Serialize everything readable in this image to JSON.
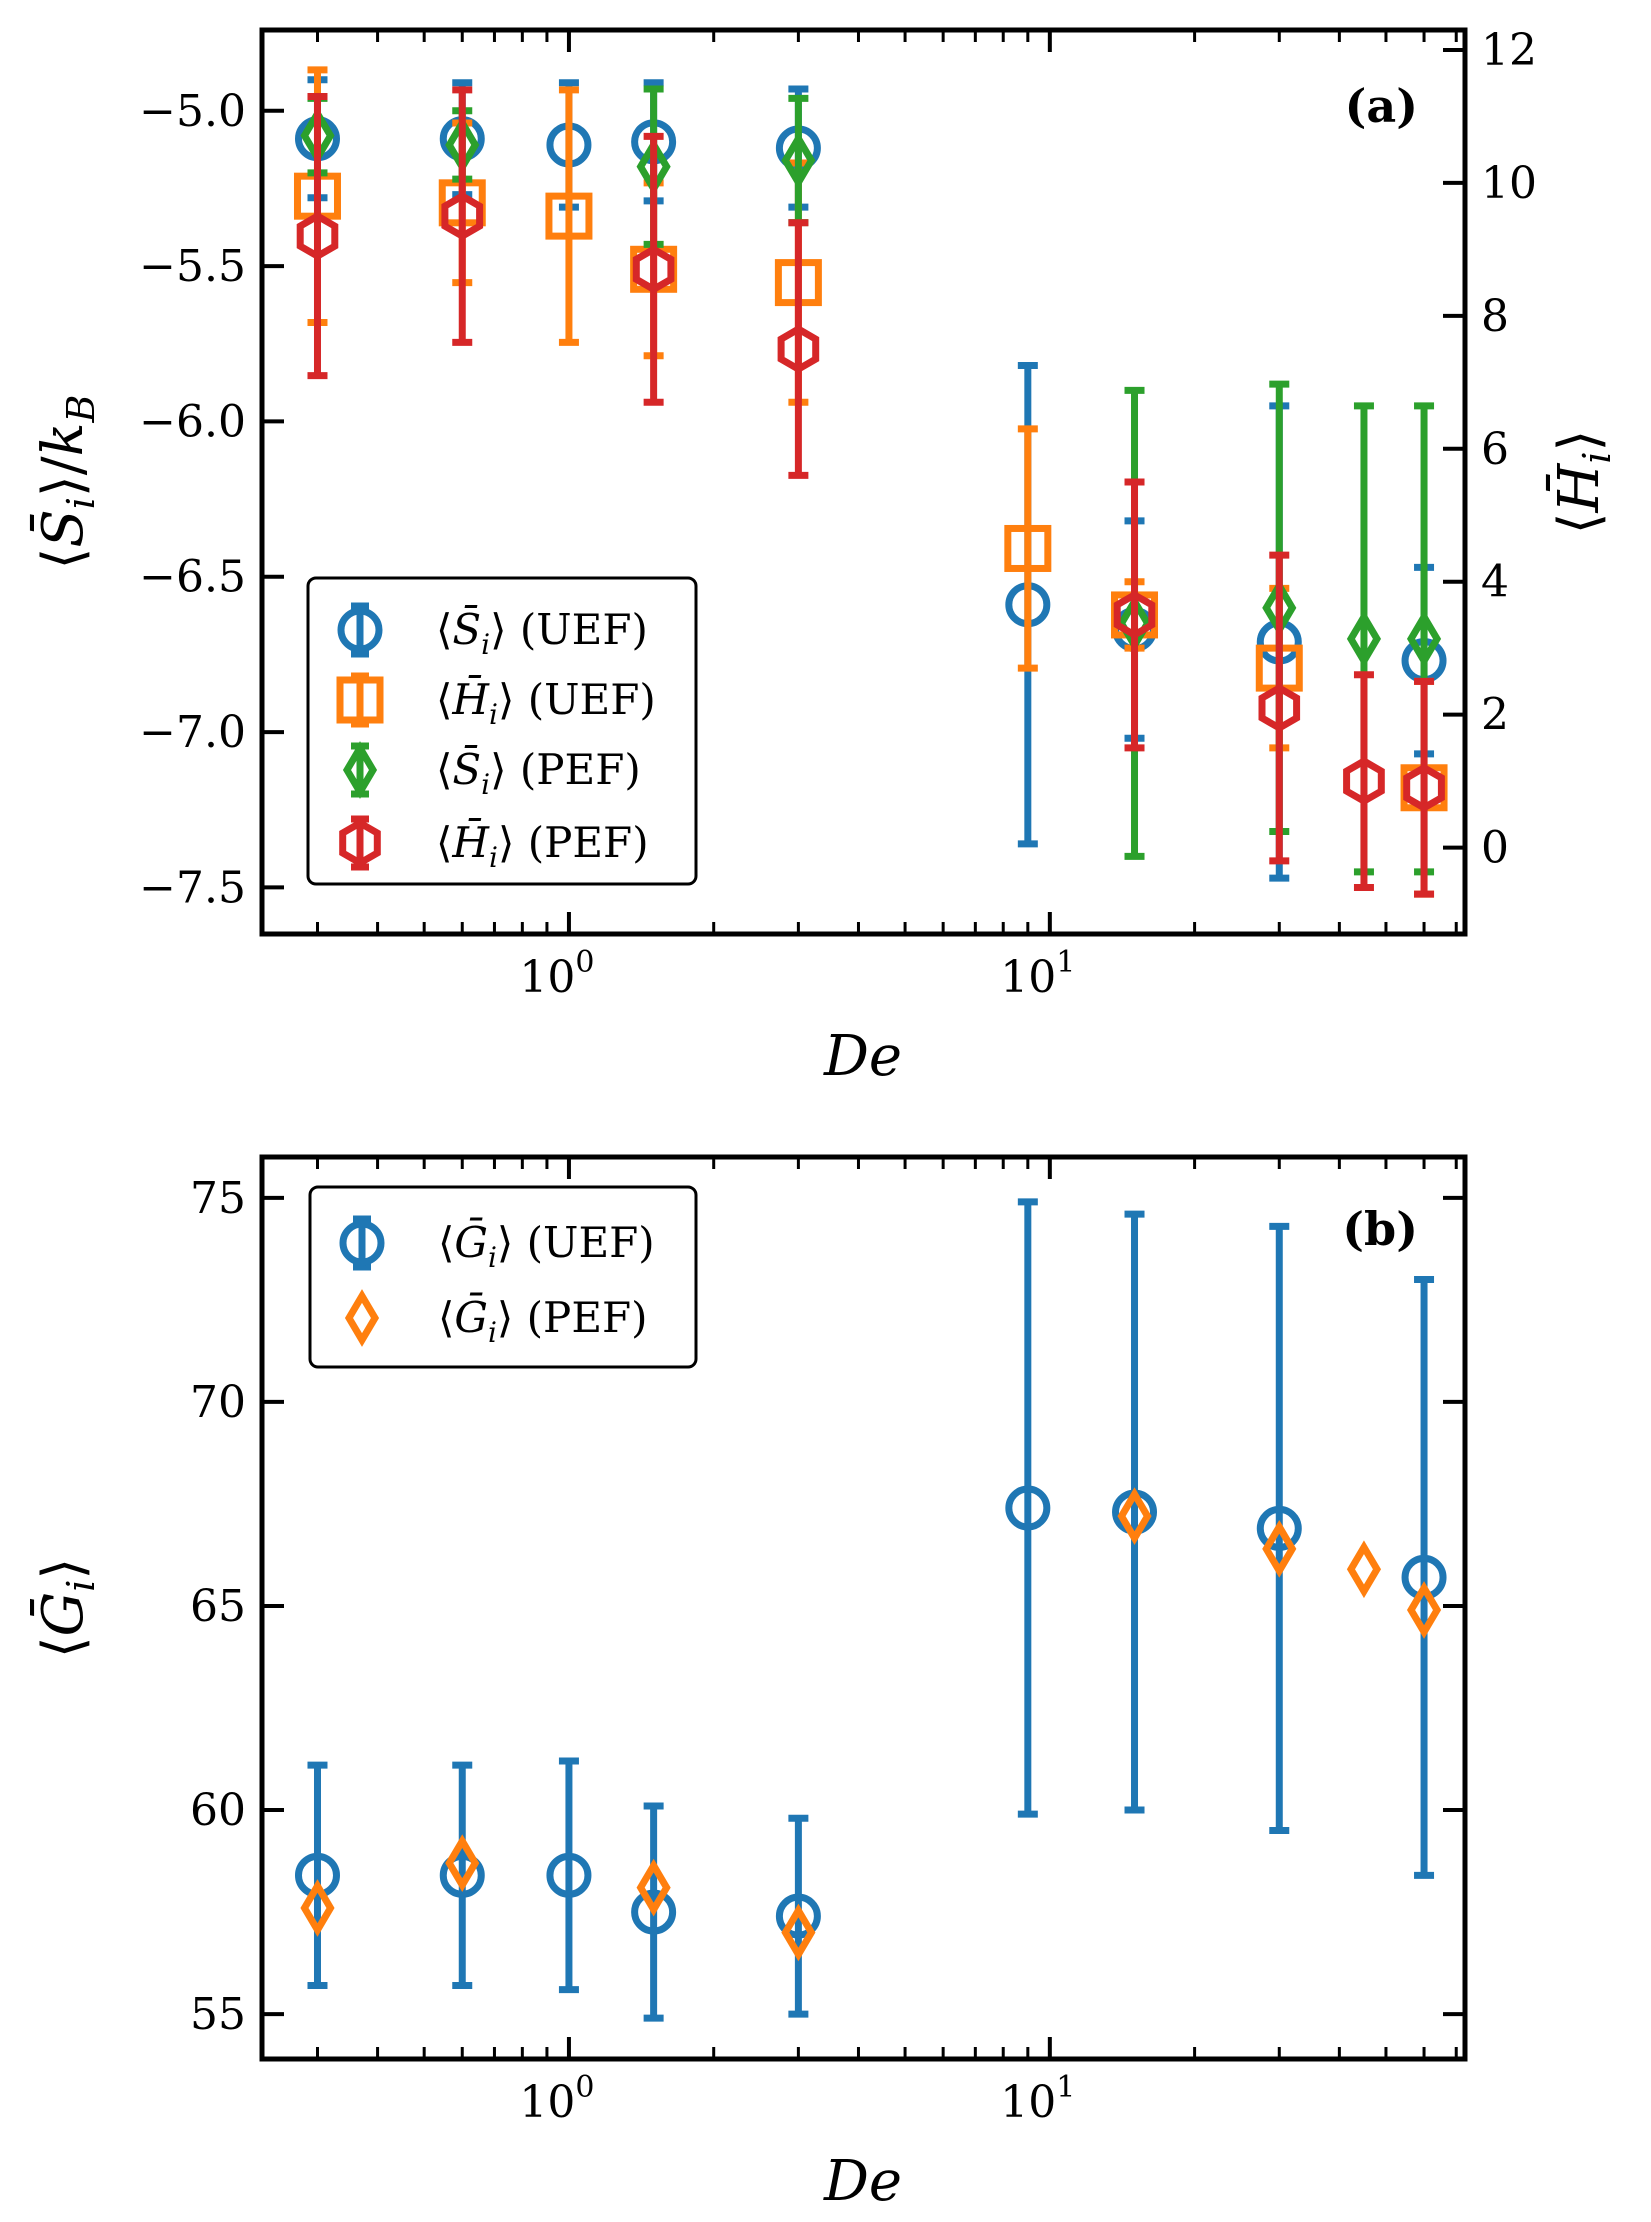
{
  "chart_data": [
    {
      "id": "a",
      "type": "scatter",
      "panel_label": "(a)",
      "xlabel": "De",
      "xscale": "log",
      "xlim": [
        0.23,
        73
      ],
      "x_ticks": [
        {
          "value": 1,
          "mantissa": "10",
          "exp": "0"
        },
        {
          "value": 10,
          "mantissa": "10",
          "exp": "1"
        }
      ],
      "ylabel_left": "⟨S̄ᵢ⟩/k_B",
      "ylim_left": [
        -7.65,
        -4.74
      ],
      "yticks_left": [
        -5.0,
        -5.5,
        -6.0,
        -6.5,
        -7.0,
        -7.5
      ],
      "ytick_labels_left": [
        "−5.0",
        "−5.5",
        "−6.0",
        "−6.5",
        "−7.0",
        "−7.5"
      ],
      "ylabel_right": "⟨H̄ᵢ⟩",
      "ylim_right": [
        -1.3,
        12.3
      ],
      "yticks_right": [
        0,
        2,
        4,
        6,
        8,
        10,
        12
      ],
      "ytick_labels_right": [
        "0",
        "2",
        "4",
        "6",
        "8",
        "10",
        "12"
      ],
      "legend_position": "lower-left",
      "series": [
        {
          "name": "⟨S̄ᵢ⟩ (UEF)",
          "legend_math": "S",
          "legend_suffix": "(UEF)",
          "axis": "left",
          "marker": "circle",
          "color": "#1f77b4",
          "x": [
            0.3,
            0.6,
            1.0,
            1.5,
            3.0,
            9.0,
            15.0,
            30.0,
            60.0
          ],
          "y": [
            -5.09,
            -5.09,
            -5.11,
            -5.1,
            -5.12,
            -6.59,
            -6.67,
            -6.71,
            -6.77
          ],
          "yerr": [
            0.19,
            0.18,
            0.2,
            0.19,
            0.19,
            0.77,
            0.35,
            0.76,
            0.3
          ]
        },
        {
          "name": "⟨H̄ᵢ⟩ (UEF)",
          "legend_math": "H",
          "legend_suffix": "(UEF)",
          "axis": "right",
          "marker": "square",
          "color": "#ff7f0e",
          "x": [
            0.3,
            0.6,
            1.0,
            1.5,
            3.0,
            9.0,
            15.0,
            30.0,
            60.0
          ],
          "y": [
            9.8,
            9.7,
            9.5,
            8.7,
            8.5,
            4.5,
            3.5,
            2.7,
            0.9
          ],
          "yerr": [
            1.9,
            1.2,
            1.9,
            1.3,
            1.8,
            1.8,
            0.5,
            1.2,
            1.6
          ]
        },
        {
          "name": "⟨S̄ᵢ⟩ (PEF)",
          "legend_math": "S",
          "legend_suffix": "(PEF)",
          "axis": "left",
          "marker": "diamond",
          "color": "#2ca02c",
          "x": [
            0.3,
            0.6,
            1.5,
            3.0,
            15.0,
            30.0,
            45.0,
            60.0
          ],
          "y": [
            -5.08,
            -5.11,
            -5.18,
            -5.16,
            -6.65,
            -6.6,
            -6.7,
            -6.7
          ],
          "yerr": [
            0.12,
            0.11,
            0.25,
            0.2,
            0.75,
            0.72,
            0.75,
            0.75
          ]
        },
        {
          "name": "⟨H̄ᵢ⟩ (PEF)",
          "legend_math": "H",
          "legend_suffix": "(PEF)",
          "axis": "right",
          "marker": "hexagon",
          "color": "#d62728",
          "x": [
            0.3,
            0.6,
            1.5,
            3.0,
            15.0,
            30.0,
            45.0,
            60.0
          ],
          "y": [
            9.2,
            9.5,
            8.7,
            7.5,
            3.5,
            2.1,
            1.0,
            0.9
          ],
          "yerr": [
            2.1,
            1.9,
            2.0,
            1.9,
            2.0,
            2.3,
            1.6,
            1.6
          ]
        }
      ]
    },
    {
      "id": "b",
      "type": "scatter",
      "panel_label": "(b)",
      "xlabel": "De",
      "xscale": "log",
      "xlim": [
        0.23,
        73
      ],
      "x_ticks": [
        {
          "value": 1,
          "mantissa": "10",
          "exp": "0"
        },
        {
          "value": 10,
          "mantissa": "10",
          "exp": "1"
        }
      ],
      "ylabel_left": "⟨Ḡᵢ⟩",
      "ylim_left": [
        53.9,
        76.0
      ],
      "yticks_left": [
        55,
        60,
        65,
        70,
        75
      ],
      "ytick_labels_left": [
        "55",
        "60",
        "65",
        "70",
        "75"
      ],
      "legend_position": "upper-left",
      "series": [
        {
          "name": "⟨Ḡᵢ⟩ (UEF)",
          "legend_math": "G",
          "legend_suffix": "(UEF)",
          "axis": "left",
          "marker": "circle",
          "color": "#1f77b4",
          "x": [
            0.3,
            0.6,
            1.0,
            1.5,
            3.0,
            9.0,
            15.0,
            30.0,
            60.0
          ],
          "y": [
            58.4,
            58.4,
            58.4,
            57.5,
            57.4,
            67.4,
            67.3,
            66.9,
            65.7
          ],
          "yerr": [
            2.7,
            2.7,
            2.8,
            2.6,
            2.4,
            7.5,
            7.3,
            7.4,
            7.3
          ]
        },
        {
          "name": "⟨Ḡᵢ⟩ (PEF)",
          "legend_math": "G",
          "legend_suffix": "(PEF)",
          "axis": "left",
          "marker": "diamond",
          "color": "#ff7f0e",
          "x": [
            0.3,
            0.6,
            1.5,
            3.0,
            15.0,
            30.0,
            45.0,
            60.0
          ],
          "y": [
            57.6,
            58.7,
            58.1,
            57.0,
            67.2,
            66.4,
            65.9,
            64.9
          ],
          "yerr": [
            0,
            0,
            0,
            0,
            0,
            0,
            0,
            0
          ]
        }
      ]
    }
  ]
}
